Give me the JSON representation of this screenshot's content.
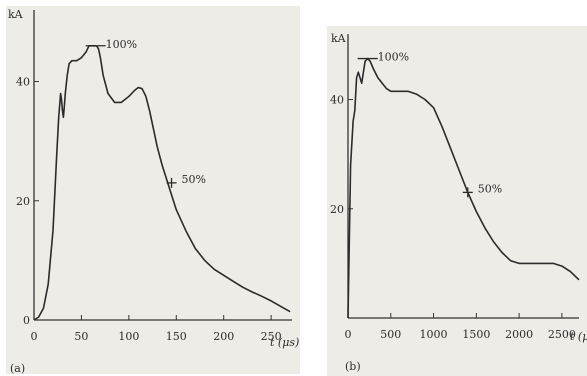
{
  "chart_data": [
    {
      "type": "line",
      "panel_label": "(a)",
      "ylabel": "kA",
      "xlabel": "t (μs)",
      "xlim": [
        0,
        270
      ],
      "ylim": [
        0,
        50
      ],
      "x_ticks": [
        0,
        50,
        100,
        150,
        200,
        250
      ],
      "x_tick_labels": [
        "0",
        "50",
        "100",
        "150",
        "200",
        "250"
      ],
      "y_ticks": [
        0,
        20,
        40
      ],
      "y_tick_labels": [
        "0",
        "20",
        "40"
      ],
      "series": [
        {
          "x": [
            0,
            5,
            10,
            15,
            20,
            24,
            26,
            28,
            29,
            30,
            31,
            32,
            33,
            35,
            37,
            40,
            45,
            50,
            55,
            58,
            60,
            62,
            64,
            66,
            68,
            70,
            73,
            78,
            85,
            92,
            100,
            106,
            110,
            114,
            118,
            122,
            126,
            130,
            135,
            140,
            145,
            150,
            160,
            170,
            180,
            190,
            200,
            210,
            220,
            230,
            240,
            250,
            260,
            270
          ],
          "y": [
            0,
            0.5,
            2,
            6,
            15,
            28,
            34,
            38,
            37,
            35,
            34,
            36,
            38,
            41,
            43,
            43.5,
            43.5,
            44,
            45,
            46,
            46,
            46,
            46,
            46,
            45.5,
            44,
            41,
            38,
            36.5,
            36.5,
            37.5,
            38.5,
            39,
            38.8,
            37.5,
            35,
            32,
            29,
            26,
            23.5,
            21,
            18.5,
            15,
            12,
            10,
            8.5,
            7.5,
            6.5,
            5.5,
            4.7,
            4,
            3.2,
            2.3,
            1.4
          ]
        }
      ],
      "annotations": [
        {
          "text": "100%",
          "x": 65,
          "y": 46
        },
        {
          "text": "50%",
          "x": 145,
          "y": 23
        }
      ]
    },
    {
      "type": "line",
      "panel_label": "(b)",
      "ylabel": "kA",
      "xlabel": "t (μ",
      "xlim": [
        0,
        2700
      ],
      "ylim": [
        0,
        50
      ],
      "x_ticks": [
        0,
        500,
        1000,
        1500,
        2000,
        2500
      ],
      "x_tick_labels": [
        "0",
        "500",
        "1000",
        "1500",
        "2000",
        "2500"
      ],
      "y_ticks": [
        20,
        40
      ],
      "y_tick_labels": [
        "20",
        "40"
      ],
      "series": [
        {
          "x": [
            0,
            30,
            60,
            80,
            100,
            120,
            140,
            160,
            180,
            200,
            230,
            260,
            300,
            350,
            400,
            450,
            500,
            600,
            700,
            800,
            900,
            1000,
            1100,
            1200,
            1300,
            1400,
            1500,
            1600,
            1700,
            1800,
            1900,
            2000,
            2100,
            2200,
            2300,
            2400,
            2500,
            2600,
            2700
          ],
          "y": [
            0,
            28,
            36,
            38,
            44,
            45,
            44,
            43,
            45,
            47,
            47.5,
            47,
            45.5,
            44,
            43,
            42,
            41.5,
            41.5,
            41.5,
            41,
            40,
            38.5,
            35,
            31,
            27,
            23,
            19.5,
            16.5,
            14,
            12,
            10.5,
            10,
            10,
            10,
            10,
            10,
            9.5,
            8.5,
            7
          ]
        }
      ],
      "annotations": [
        {
          "text": "100%",
          "x": 230,
          "y": 47.5
        },
        {
          "text": "50%",
          "x": 1400,
          "y": 23
        }
      ]
    }
  ]
}
